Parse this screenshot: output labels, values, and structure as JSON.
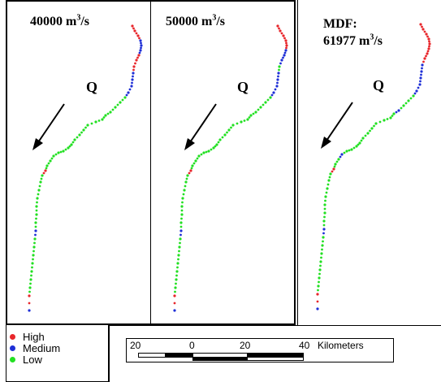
{
  "panels": [
    {
      "title": [
        "40000 m",
        "3",
        "/s"
      ],
      "flow_label": "Q"
    },
    {
      "title": [
        "50000 m",
        "3",
        "/s"
      ],
      "flow_label": "Q"
    },
    {
      "title_line1": "MDF:",
      "title": [
        "61977 m",
        "3",
        "/s"
      ],
      "flow_label": "Q"
    }
  ],
  "legend": {
    "items": [
      {
        "label": "High",
        "color": "#e8262b"
      },
      {
        "label": "Medium",
        "color": "#1e2fd6"
      },
      {
        "label": "Low",
        "color": "#22e022"
      }
    ]
  },
  "scalebar": {
    "ticks": [
      "20",
      "0",
      "20",
      "40"
    ],
    "unit": "Kilometers"
  },
  "colors": {
    "high": "#e8262b",
    "medium": "#1e2fd6",
    "low": "#22e022"
  },
  "river_classes": {
    "panel_1": [
      "high",
      "high",
      "high",
      "medium",
      "medium",
      "medium",
      "high",
      "high",
      "high",
      "medium",
      "medium",
      "medium",
      "medium",
      "low",
      "low",
      "low",
      "low",
      "low",
      "low",
      "low",
      "low",
      "low",
      "low",
      "low",
      "low",
      "low",
      "low",
      "low",
      "low",
      "low",
      "low",
      "high",
      "low",
      "low",
      "low",
      "low",
      "low",
      "low",
      "low",
      "medium",
      "low",
      "low",
      "low",
      "low",
      "low",
      "low",
      "low",
      "high",
      "medium"
    ],
    "panel_2": [
      "high",
      "high",
      "high",
      "high",
      "high",
      "medium",
      "medium",
      "medium",
      "low",
      "medium",
      "medium",
      "medium",
      "medium",
      "low",
      "low",
      "low",
      "low",
      "low",
      "low",
      "low",
      "low",
      "low",
      "low",
      "low",
      "low",
      "low",
      "low",
      "low",
      "low",
      "low",
      "low",
      "high",
      "low",
      "low",
      "low",
      "low",
      "low",
      "low",
      "low",
      "medium",
      "low",
      "low",
      "low",
      "low",
      "low",
      "low",
      "low",
      "high",
      "medium"
    ],
    "panel_3": [
      "high",
      "high",
      "high",
      "high",
      "high",
      "high",
      "high",
      "high",
      "medium",
      "medium",
      "medium",
      "medium",
      "medium",
      "low",
      "low",
      "low",
      "medium",
      "low",
      "low",
      "low",
      "low",
      "low",
      "low",
      "low",
      "low",
      "low",
      "low",
      "low",
      "medium",
      "low",
      "low",
      "high",
      "low",
      "low",
      "low",
      "low",
      "low",
      "low",
      "low",
      "medium",
      "low",
      "low",
      "low",
      "low",
      "low",
      "low",
      "low",
      "high",
      "medium"
    ]
  }
}
